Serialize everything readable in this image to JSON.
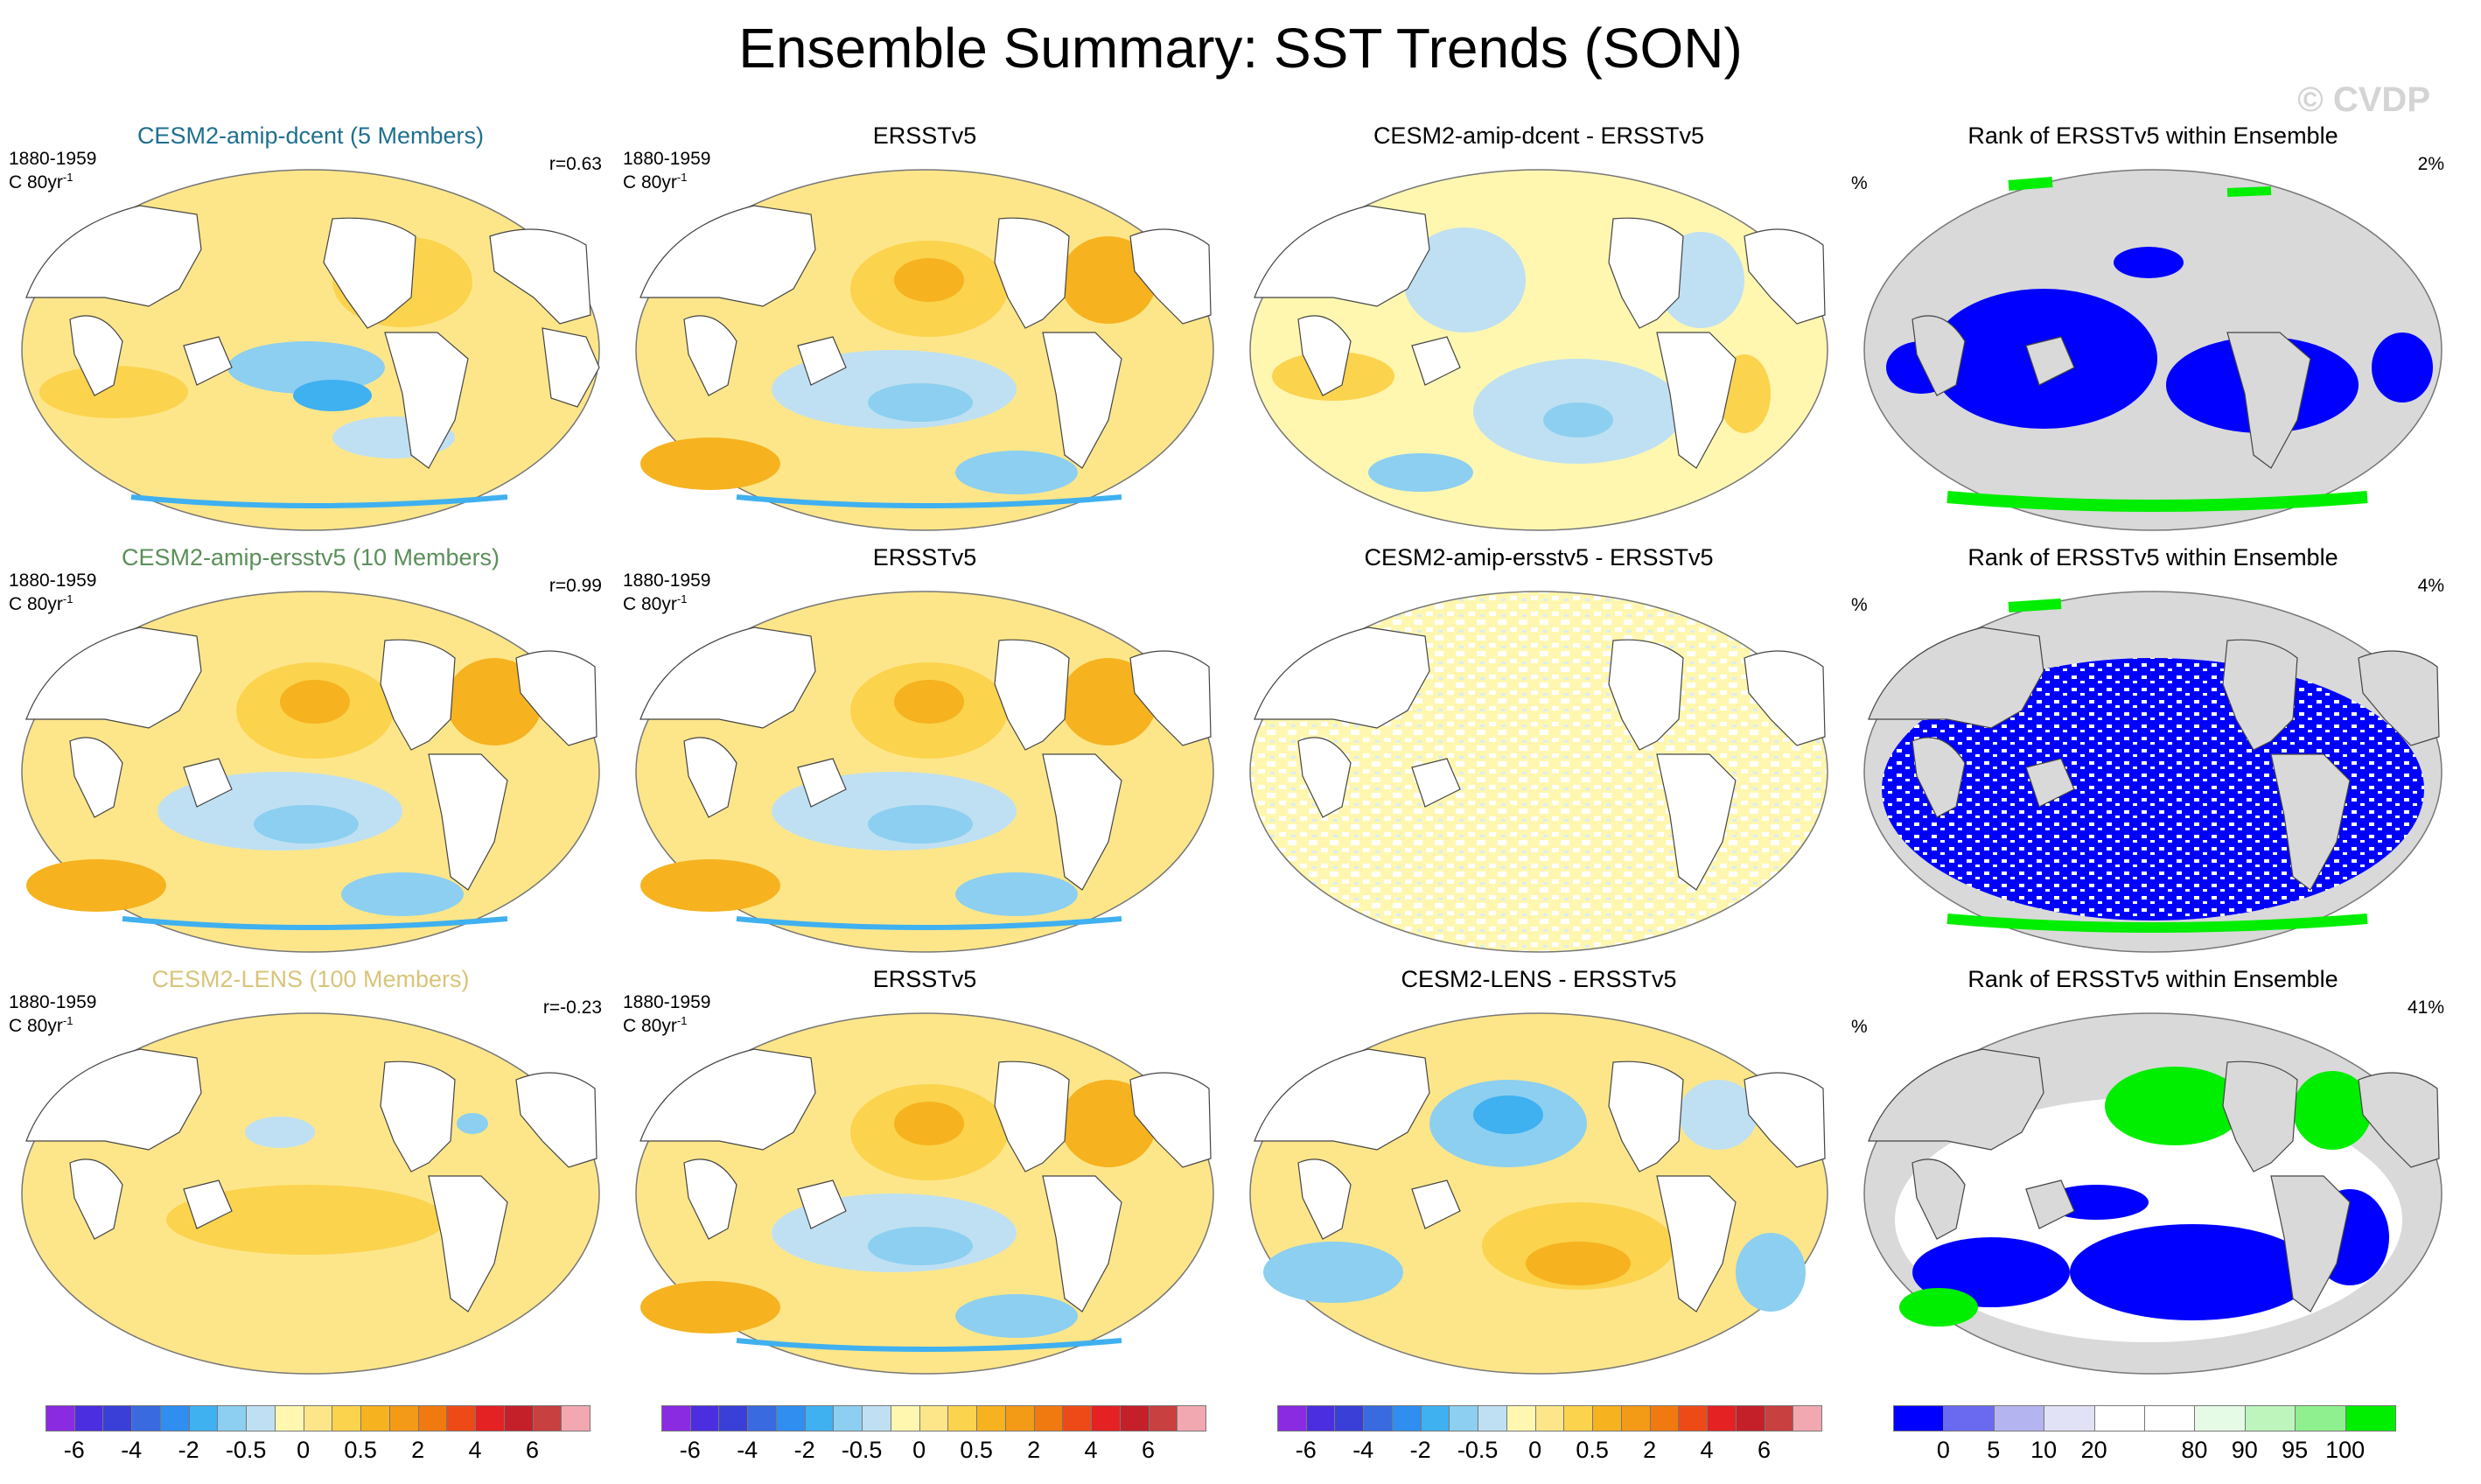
{
  "title": "Ensemble Summary: SST Trends (SON)",
  "watermark": "© CVDP",
  "colors": {
    "land": "#ffffff",
    "land_rank": "#d9d9d9",
    "ocean_warm": "#fde68a",
    "ocean_cool": "#bfe0f2"
  },
  "rows": [
    {
      "model": {
        "title": "CESM2-amip-dcent (5 Members)",
        "title_color": "#1f6f8f",
        "period": "1880-1959",
        "units": "C 80yr",
        "units_sup": "-1",
        "corr": "r=0.63",
        "icon": "sst-trend-map"
      },
      "obs": {
        "title": "ERSSTv5",
        "period": "1880-1959",
        "units": "C 80yr",
        "units_sup": "-1",
        "icon": "sst-trend-map"
      },
      "diff": {
        "title": "CESM2-amip-dcent - ERSSTv5",
        "icon": "sst-difference-map"
      },
      "rank": {
        "title": "Rank of ERSSTv5 within Ensemble",
        "pct_sym": "%",
        "pct": "2%",
        "icon": "rank-map"
      }
    },
    {
      "model": {
        "title": "CESM2-amip-ersstv5 (10 Members)",
        "title_color": "#5a8f5a",
        "period": "1880-1959",
        "units": "C 80yr",
        "units_sup": "-1",
        "corr": "r=0.99",
        "icon": "sst-trend-map"
      },
      "obs": {
        "title": "ERSSTv5",
        "period": "1880-1959",
        "units": "C 80yr",
        "units_sup": "-1",
        "icon": "sst-trend-map"
      },
      "diff": {
        "title": "CESM2-amip-ersstv5 - ERSSTv5",
        "icon": "sst-difference-map"
      },
      "rank": {
        "title": "Rank of ERSSTv5 within Ensemble",
        "pct_sym": "%",
        "pct": "4%",
        "icon": "rank-map"
      }
    },
    {
      "model": {
        "title": "CESM2-LENS (100 Members)",
        "title_color": "#d8c47a",
        "period": "1880-1959",
        "units": "C 80yr",
        "units_sup": "-1",
        "corr": "r=-0.23",
        "icon": "sst-trend-map"
      },
      "obs": {
        "title": "ERSSTv5",
        "period": "1880-1959",
        "units": "C 80yr",
        "units_sup": "-1",
        "icon": "sst-trend-map"
      },
      "diff": {
        "title": "CESM2-LENS - ERSSTv5",
        "icon": "sst-difference-map"
      },
      "rank": {
        "title": "Rank of ERSSTv5 within Ensemble",
        "pct_sym": "%",
        "pct": "41%",
        "icon": "rank-map"
      }
    }
  ],
  "colorbars": {
    "trend": {
      "colors": [
        "#8a2be2",
        "#4b2ee0",
        "#3a3fd8",
        "#3a6ae0",
        "#2f8ef0",
        "#3fb0f0",
        "#8ccff0",
        "#bfe0f2",
        "#fff7b0",
        "#fde68a",
        "#fbd34d",
        "#f6b21f",
        "#f39a16",
        "#f07a10",
        "#ee4a18",
        "#e42224",
        "#c4202a",
        "#c94040",
        "#f2a8b0"
      ],
      "labels": [
        "-6",
        "-4",
        "-2",
        "-0.5",
        "0",
        "0.5",
        "2",
        "4",
        "6"
      ]
    },
    "rank": {
      "colors": [
        "#0000ff",
        "#6a6af0",
        "#b4b4f0",
        "#e2e2f6",
        "#ffffff",
        "#ffffff",
        "#e6fbe6",
        "#bdf5bd",
        "#8ff08f",
        "#00ee00"
      ],
      "labels": [
        "0",
        "5",
        "10",
        "20",
        "80",
        "90",
        "95",
        "100"
      ]
    }
  }
}
